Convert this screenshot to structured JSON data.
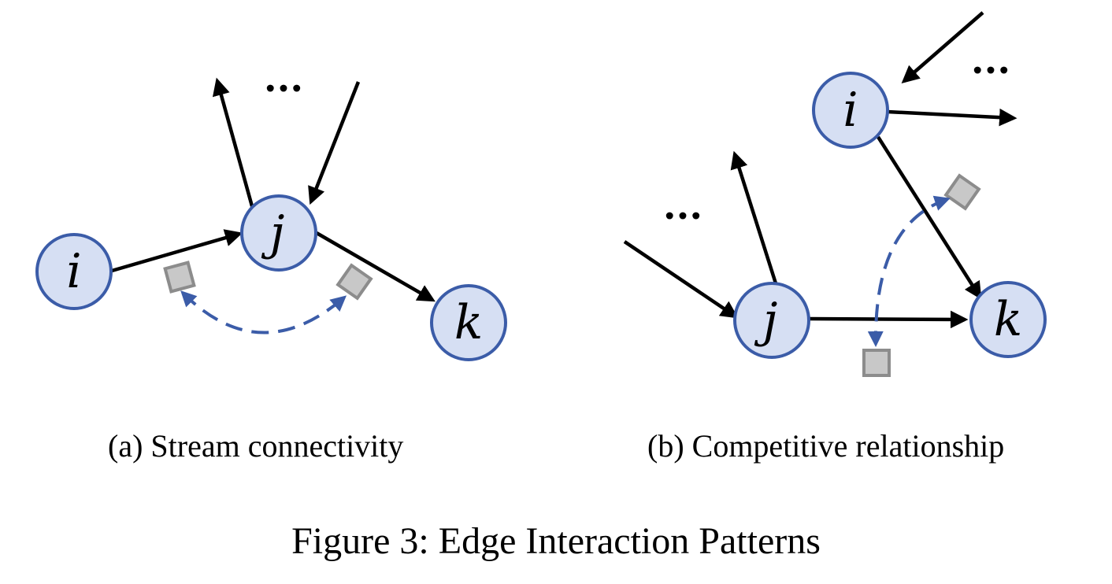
{
  "panel_a": {
    "nodes": {
      "i": "i",
      "j": "j",
      "k": "k"
    },
    "ellipsis": "...",
    "caption": "(a) Stream connectivity"
  },
  "panel_b": {
    "nodes": {
      "i": "i",
      "j": "j",
      "k": "k"
    },
    "ellipsis_top": "...",
    "ellipsis_left": "...",
    "caption": "(b) Competitive relationship"
  },
  "figure_caption": "Figure 3: Edge Interaction Patterns",
  "colors": {
    "node_fill": "#d6dff3",
    "node_stroke": "#3b5ca8",
    "dashed_arrow": "#3b5ca8",
    "token_fill": "#c8c8c8",
    "token_stroke": "#8c8c8c",
    "edge": "#000000"
  }
}
